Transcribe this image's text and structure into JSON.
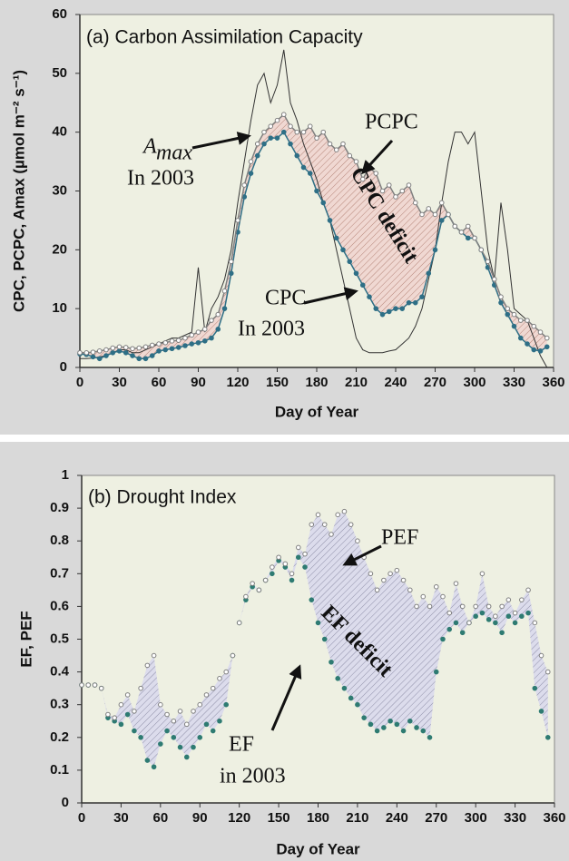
{
  "chart_data": [
    {
      "type": "line",
      "title": "(a) Carbon Assimilation Capacity",
      "xlabel": "Day of Year",
      "ylabel": "CPC, PCPC, Amax (µmol m⁻² s⁻¹)",
      "x": [
        0,
        5,
        10,
        15,
        20,
        25,
        30,
        35,
        40,
        45,
        50,
        55,
        60,
        65,
        70,
        75,
        80,
        85,
        90,
        95,
        100,
        105,
        110,
        115,
        120,
        125,
        130,
        135,
        140,
        145,
        150,
        155,
        160,
        165,
        170,
        175,
        180,
        185,
        190,
        195,
        200,
        205,
        210,
        215,
        220,
        225,
        230,
        235,
        240,
        245,
        250,
        255,
        260,
        265,
        270,
        275,
        280,
        285,
        290,
        295,
        300,
        305,
        310,
        315,
        320,
        325,
        330,
        335,
        340,
        345,
        350,
        355
      ],
      "series": [
        {
          "name": "PCPC",
          "color": "#7f7f7f",
          "marker": "open",
          "values": [
            2.5,
            2.5,
            2.6,
            2.8,
            3,
            3.3,
            3.5,
            3.4,
            3.2,
            3.3,
            3.5,
            3.8,
            4,
            4.2,
            4.5,
            4.6,
            5,
            5.5,
            6,
            6.5,
            8,
            9,
            13,
            18,
            25,
            31,
            35,
            38,
            40,
            41,
            42,
            43,
            41,
            40,
            40,
            41,
            39,
            40,
            38,
            37,
            38,
            36,
            35,
            32,
            34,
            33,
            30,
            31,
            29,
            30,
            31,
            28,
            26,
            27,
            26,
            28,
            26,
            24,
            23,
            24,
            22,
            20,
            18,
            15,
            12,
            10,
            9,
            8,
            8,
            7,
            6,
            5
          ]
        },
        {
          "name": "CPC",
          "color": "#2e6f86",
          "marker": "filled",
          "values": [
            2.3,
            2.2,
            1.8,
            1.5,
            2,
            2.5,
            2.8,
            2.5,
            2,
            1.5,
            1.5,
            2,
            2.8,
            3,
            3.2,
            3.4,
            3.7,
            4,
            4.2,
            4.5,
            5,
            6.5,
            10,
            16,
            23,
            29,
            33,
            36,
            38,
            39,
            39,
            40,
            38,
            36,
            34,
            33,
            30,
            28,
            25,
            22,
            20,
            18,
            16,
            14,
            12,
            10,
            9,
            9.5,
            10,
            10,
            11,
            11,
            12,
            16,
            20,
            25,
            26,
            24,
            23,
            22,
            22,
            20,
            17,
            14,
            11,
            9,
            7,
            5,
            4,
            3,
            2.8,
            3.5
          ]
        },
        {
          "name": "Amax",
          "color": "#333333",
          "marker": "none",
          "values": [
            1.5,
            1.5,
            1.6,
            1.8,
            2,
            2.5,
            3,
            3,
            2.5,
            2.5,
            3,
            3.5,
            4,
            4.5,
            5,
            5,
            5.5,
            6,
            17,
            6,
            10,
            12,
            15,
            20,
            28,
            35,
            42,
            48,
            50,
            45,
            48,
            54,
            45,
            42,
            38,
            35,
            32,
            28,
            25,
            20,
            15,
            10,
            5,
            3,
            2.5,
            2.5,
            2.5,
            2.8,
            3,
            4,
            5,
            7,
            10,
            15,
            20,
            28,
            35,
            40,
            40,
            38,
            40,
            30,
            20,
            15,
            28,
            20,
            10,
            9,
            8,
            5,
            2,
            0
          ]
        }
      ],
      "xlim": [
        0,
        360
      ],
      "ylim": [
        0,
        60
      ],
      "xticks": [
        0,
        30,
        60,
        90,
        120,
        150,
        180,
        210,
        240,
        270,
        300,
        330,
        360
      ],
      "yticks": [
        0,
        10,
        20,
        30,
        40,
        50,
        60
      ],
      "annotations": [
        "A",
        "max",
        "In 2003",
        "PCPC",
        "CPC",
        "In 2003",
        "CPC deficit"
      ]
    },
    {
      "type": "scatter",
      "title": "(b) Drought Index",
      "xlabel": "Day of Year",
      "ylabel": "EF, PEF",
      "x": [
        0,
        5,
        10,
        15,
        20,
        25,
        30,
        35,
        40,
        45,
        50,
        55,
        60,
        65,
        70,
        75,
        80,
        85,
        90,
        95,
        100,
        105,
        110,
        115,
        120,
        125,
        130,
        135,
        140,
        145,
        150,
        155,
        160,
        165,
        170,
        175,
        180,
        185,
        190,
        195,
        200,
        205,
        210,
        215,
        220,
        225,
        230,
        235,
        240,
        245,
        250,
        255,
        260,
        265,
        270,
        275,
        280,
        285,
        290,
        295,
        300,
        305,
        310,
        315,
        320,
        325,
        330,
        335,
        340,
        345,
        350,
        355
      ],
      "series": [
        {
          "name": "PEF",
          "color": "#7f7f7f",
          "marker": "open",
          "values": [
            0.36,
            0.36,
            0.36,
            0.35,
            0.27,
            0.26,
            0.3,
            0.33,
            0.28,
            0.35,
            0.42,
            0.45,
            0.3,
            0.27,
            0.25,
            0.28,
            0.24,
            0.28,
            0.3,
            0.33,
            0.35,
            0.38,
            0.4,
            0.45,
            0.55,
            0.63,
            0.67,
            0.65,
            0.68,
            0.72,
            0.75,
            0.73,
            0.7,
            0.78,
            0.76,
            0.85,
            0.88,
            0.85,
            0.82,
            0.88,
            0.89,
            0.85,
            0.8,
            0.75,
            0.7,
            0.65,
            0.68,
            0.7,
            0.71,
            0.68,
            0.65,
            0.6,
            0.63,
            0.6,
            0.66,
            0.63,
            0.58,
            0.67,
            0.6,
            0.55,
            0.6,
            0.7,
            0.6,
            0.57,
            0.6,
            0.62,
            0.58,
            0.62,
            0.65,
            0.55,
            0.45,
            0.4
          ]
        },
        {
          "name": "EF",
          "color": "#2e7b72",
          "marker": "filled",
          "values": [
            0.36,
            0.36,
            0.36,
            0.35,
            0.26,
            0.25,
            0.24,
            0.27,
            0.22,
            0.2,
            0.13,
            0.11,
            0.18,
            0.22,
            0.2,
            0.17,
            0.14,
            0.17,
            0.2,
            0.24,
            0.22,
            0.25,
            0.3,
            0.45,
            0.55,
            0.62,
            0.66,
            0.65,
            0.68,
            0.7,
            0.74,
            0.72,
            0.68,
            0.75,
            0.72,
            0.62,
            0.55,
            0.5,
            0.43,
            0.38,
            0.35,
            0.32,
            0.3,
            0.26,
            0.24,
            0.22,
            0.23,
            0.25,
            0.24,
            0.22,
            0.25,
            0.23,
            0.22,
            0.2,
            0.4,
            0.5,
            0.53,
            0.55,
            0.52,
            0.55,
            0.57,
            0.58,
            0.56,
            0.55,
            0.52,
            0.57,
            0.55,
            0.57,
            0.58,
            0.35,
            0.28,
            0.2
          ]
        }
      ],
      "xlim": [
        0,
        360
      ],
      "ylim": [
        0,
        1
      ],
      "xticks": [
        0,
        30,
        60,
        90,
        120,
        150,
        180,
        210,
        240,
        270,
        300,
        330,
        360
      ],
      "yticks": [
        0,
        0.1,
        0.2,
        0.3,
        0.4,
        0.5,
        0.6,
        0.7,
        0.8,
        0.9,
        1
      ],
      "annotations": [
        "PEF",
        "EF deficit",
        "EF",
        "in 2003"
      ]
    }
  ]
}
